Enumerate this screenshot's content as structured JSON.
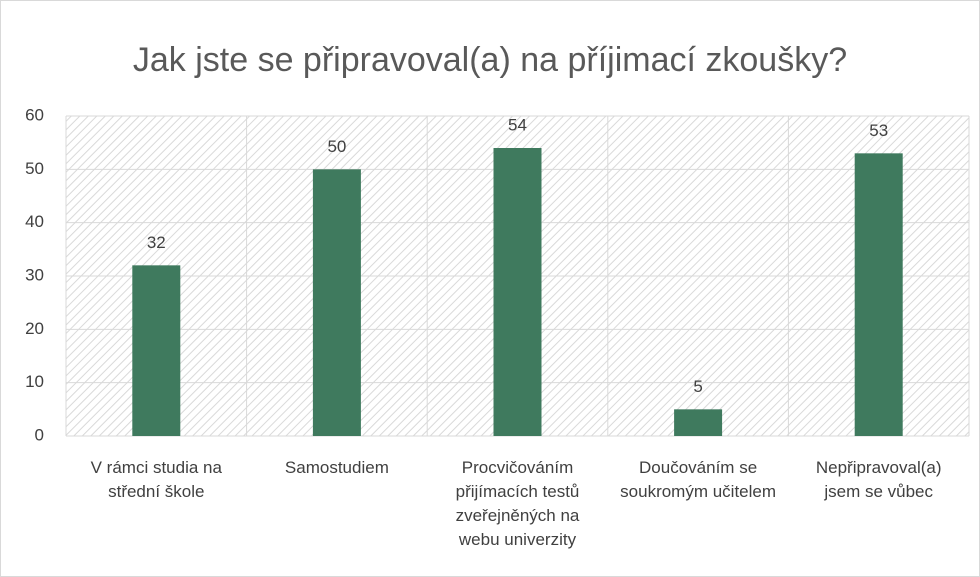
{
  "chart_data": {
    "type": "bar",
    "title": "Jak jste se připravoval(a) na příjimací zkoušky?",
    "categories": [
      "V rámci studia na střední škole",
      "Samostudiem",
      "Procvičováním přijímacích testů zveřejněných na webu univerzity",
      "Doučováním se soukromým učitelem",
      "Nepřipravoval(a) jsem se vůbec"
    ],
    "values": [
      32,
      50,
      54,
      5,
      53
    ],
    "color": "#3f7a5e",
    "ylim": [
      0,
      60
    ],
    "yticks": [
      0,
      10,
      20,
      30,
      40,
      50,
      60
    ],
    "grid": true
  }
}
